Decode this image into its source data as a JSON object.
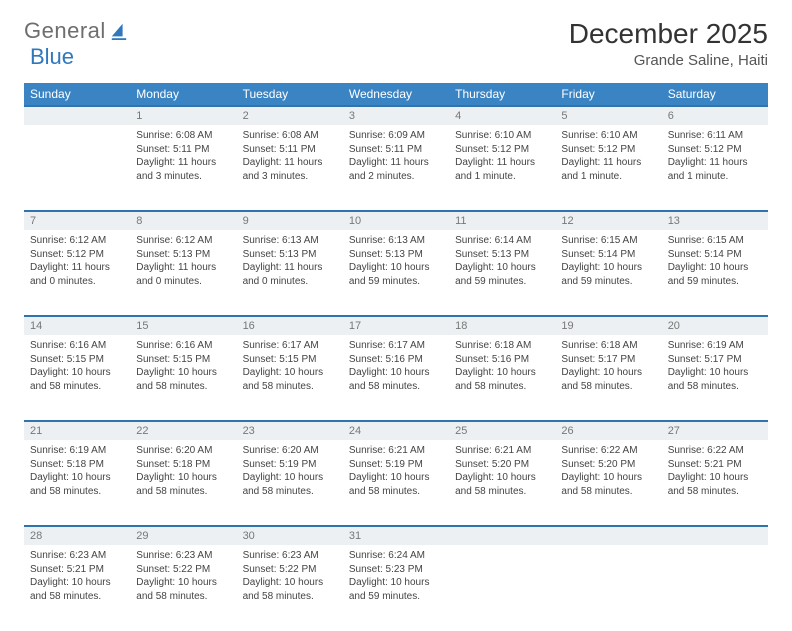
{
  "logo": {
    "text1": "General",
    "text2": "Blue",
    "accent_color": "#2f78bd"
  },
  "title": "December 2025",
  "location": "Grande Saline, Haiti",
  "colors": {
    "header_bg": "#3b84c4",
    "daynum_bg": "#edf0f2",
    "row_border": "#3173ad"
  },
  "weekdays": [
    "Sunday",
    "Monday",
    "Tuesday",
    "Wednesday",
    "Thursday",
    "Friday",
    "Saturday"
  ],
  "weeks": [
    {
      "nums": [
        "",
        "1",
        "2",
        "3",
        "4",
        "5",
        "6"
      ],
      "cells": [
        null,
        {
          "sr": "Sunrise: 6:08 AM",
          "ss": "Sunset: 5:11 PM",
          "dl": "Daylight: 11 hours and 3 minutes."
        },
        {
          "sr": "Sunrise: 6:08 AM",
          "ss": "Sunset: 5:11 PM",
          "dl": "Daylight: 11 hours and 3 minutes."
        },
        {
          "sr": "Sunrise: 6:09 AM",
          "ss": "Sunset: 5:11 PM",
          "dl": "Daylight: 11 hours and 2 minutes."
        },
        {
          "sr": "Sunrise: 6:10 AM",
          "ss": "Sunset: 5:12 PM",
          "dl": "Daylight: 11 hours and 1 minute."
        },
        {
          "sr": "Sunrise: 6:10 AM",
          "ss": "Sunset: 5:12 PM",
          "dl": "Daylight: 11 hours and 1 minute."
        },
        {
          "sr": "Sunrise: 6:11 AM",
          "ss": "Sunset: 5:12 PM",
          "dl": "Daylight: 11 hours and 1 minute."
        }
      ]
    },
    {
      "nums": [
        "7",
        "8",
        "9",
        "10",
        "11",
        "12",
        "13"
      ],
      "cells": [
        {
          "sr": "Sunrise: 6:12 AM",
          "ss": "Sunset: 5:12 PM",
          "dl": "Daylight: 11 hours and 0 minutes."
        },
        {
          "sr": "Sunrise: 6:12 AM",
          "ss": "Sunset: 5:13 PM",
          "dl": "Daylight: 11 hours and 0 minutes."
        },
        {
          "sr": "Sunrise: 6:13 AM",
          "ss": "Sunset: 5:13 PM",
          "dl": "Daylight: 11 hours and 0 minutes."
        },
        {
          "sr": "Sunrise: 6:13 AM",
          "ss": "Sunset: 5:13 PM",
          "dl": "Daylight: 10 hours and 59 minutes."
        },
        {
          "sr": "Sunrise: 6:14 AM",
          "ss": "Sunset: 5:13 PM",
          "dl": "Daylight: 10 hours and 59 minutes."
        },
        {
          "sr": "Sunrise: 6:15 AM",
          "ss": "Sunset: 5:14 PM",
          "dl": "Daylight: 10 hours and 59 minutes."
        },
        {
          "sr": "Sunrise: 6:15 AM",
          "ss": "Sunset: 5:14 PM",
          "dl": "Daylight: 10 hours and 59 minutes."
        }
      ]
    },
    {
      "nums": [
        "14",
        "15",
        "16",
        "17",
        "18",
        "19",
        "20"
      ],
      "cells": [
        {
          "sr": "Sunrise: 6:16 AM",
          "ss": "Sunset: 5:15 PM",
          "dl": "Daylight: 10 hours and 58 minutes."
        },
        {
          "sr": "Sunrise: 6:16 AM",
          "ss": "Sunset: 5:15 PM",
          "dl": "Daylight: 10 hours and 58 minutes."
        },
        {
          "sr": "Sunrise: 6:17 AM",
          "ss": "Sunset: 5:15 PM",
          "dl": "Daylight: 10 hours and 58 minutes."
        },
        {
          "sr": "Sunrise: 6:17 AM",
          "ss": "Sunset: 5:16 PM",
          "dl": "Daylight: 10 hours and 58 minutes."
        },
        {
          "sr": "Sunrise: 6:18 AM",
          "ss": "Sunset: 5:16 PM",
          "dl": "Daylight: 10 hours and 58 minutes."
        },
        {
          "sr": "Sunrise: 6:18 AM",
          "ss": "Sunset: 5:17 PM",
          "dl": "Daylight: 10 hours and 58 minutes."
        },
        {
          "sr": "Sunrise: 6:19 AM",
          "ss": "Sunset: 5:17 PM",
          "dl": "Daylight: 10 hours and 58 minutes."
        }
      ]
    },
    {
      "nums": [
        "21",
        "22",
        "23",
        "24",
        "25",
        "26",
        "27"
      ],
      "cells": [
        {
          "sr": "Sunrise: 6:19 AM",
          "ss": "Sunset: 5:18 PM",
          "dl": "Daylight: 10 hours and 58 minutes."
        },
        {
          "sr": "Sunrise: 6:20 AM",
          "ss": "Sunset: 5:18 PM",
          "dl": "Daylight: 10 hours and 58 minutes."
        },
        {
          "sr": "Sunrise: 6:20 AM",
          "ss": "Sunset: 5:19 PM",
          "dl": "Daylight: 10 hours and 58 minutes."
        },
        {
          "sr": "Sunrise: 6:21 AM",
          "ss": "Sunset: 5:19 PM",
          "dl": "Daylight: 10 hours and 58 minutes."
        },
        {
          "sr": "Sunrise: 6:21 AM",
          "ss": "Sunset: 5:20 PM",
          "dl": "Daylight: 10 hours and 58 minutes."
        },
        {
          "sr": "Sunrise: 6:22 AM",
          "ss": "Sunset: 5:20 PM",
          "dl": "Daylight: 10 hours and 58 minutes."
        },
        {
          "sr": "Sunrise: 6:22 AM",
          "ss": "Sunset: 5:21 PM",
          "dl": "Daylight: 10 hours and 58 minutes."
        }
      ]
    },
    {
      "nums": [
        "28",
        "29",
        "30",
        "31",
        "",
        "",
        ""
      ],
      "cells": [
        {
          "sr": "Sunrise: 6:23 AM",
          "ss": "Sunset: 5:21 PM",
          "dl": "Daylight: 10 hours and 58 minutes."
        },
        {
          "sr": "Sunrise: 6:23 AM",
          "ss": "Sunset: 5:22 PM",
          "dl": "Daylight: 10 hours and 58 minutes."
        },
        {
          "sr": "Sunrise: 6:23 AM",
          "ss": "Sunset: 5:22 PM",
          "dl": "Daylight: 10 hours and 58 minutes."
        },
        {
          "sr": "Sunrise: 6:24 AM",
          "ss": "Sunset: 5:23 PM",
          "dl": "Daylight: 10 hours and 59 minutes."
        },
        null,
        null,
        null
      ]
    }
  ]
}
